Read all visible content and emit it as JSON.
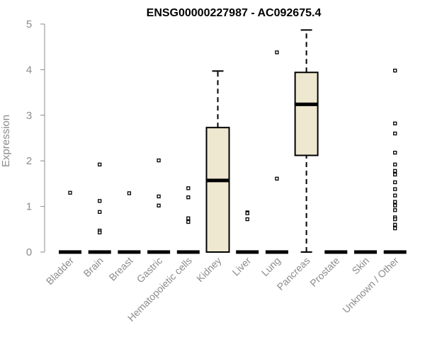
{
  "chart_data": {
    "type": "boxplot",
    "title": "ENSG00000227987 - AC092675.4",
    "ylabel": "Expression",
    "xlabel": "",
    "ylim": [
      0,
      5
    ],
    "yticks": [
      0,
      1,
      2,
      3,
      4,
      5
    ],
    "grid": false,
    "legend": "none",
    "box_fill": "#efe8d0",
    "categories": [
      "Bladder",
      "Brain",
      "Breast",
      "Gastric",
      "Hematopoietic cells",
      "Kidney",
      "Liver",
      "Lung",
      "Pancreas",
      "Prostate",
      "Skin",
      "Unknown / Other"
    ],
    "boxes": [
      {
        "q1": 0,
        "median": 0,
        "q3": 0,
        "whisker_low": 0,
        "whisker_high": 0,
        "outliers": [
          1.3
        ]
      },
      {
        "q1": 0,
        "median": 0,
        "q3": 0,
        "whisker_low": 0,
        "whisker_high": 0,
        "outliers": [
          1.92,
          1.12,
          0.88,
          0.47,
          0.43
        ]
      },
      {
        "q1": 0,
        "median": 0,
        "q3": 0,
        "whisker_low": 0,
        "whisker_high": 0,
        "outliers": [
          1.29
        ]
      },
      {
        "q1": 0,
        "median": 0,
        "q3": 0,
        "whisker_low": 0,
        "whisker_high": 0,
        "outliers": [
          2.01,
          1.22,
          1.02
        ]
      },
      {
        "q1": 0,
        "median": 0,
        "q3": 0,
        "whisker_low": 0,
        "whisker_high": 0,
        "outliers": [
          1.4,
          1.2,
          0.74,
          0.66
        ]
      },
      {
        "q1": 0,
        "median": 1.57,
        "q3": 2.73,
        "whisker_low": 0,
        "whisker_high": 3.97,
        "outliers": []
      },
      {
        "q1": 0,
        "median": 0,
        "q3": 0,
        "whisker_low": 0,
        "whisker_high": 0,
        "outliers": [
          0.87,
          0.85,
          0.72
        ]
      },
      {
        "q1": 0,
        "median": 0,
        "q3": 0,
        "whisker_low": 0,
        "whisker_high": 0,
        "outliers": [
          4.38,
          1.61
        ]
      },
      {
        "q1": 2.12,
        "median": 3.24,
        "q3": 3.94,
        "whisker_low": 0,
        "whisker_high": 4.87,
        "outliers": []
      },
      {
        "q1": 0,
        "median": 0,
        "q3": 0,
        "whisker_low": 0,
        "whisker_high": 0,
        "outliers": []
      },
      {
        "q1": 0,
        "median": 0,
        "q3": 0,
        "whisker_low": 0,
        "whisker_high": 0,
        "outliers": []
      },
      {
        "q1": 0,
        "median": 0,
        "q3": 0,
        "whisker_low": 0,
        "whisker_high": 0,
        "outliers": [
          3.98,
          2.82,
          2.6,
          2.18,
          1.92,
          1.78,
          1.7,
          1.53,
          1.38,
          1.24,
          1.1,
          1.02,
          0.92,
          0.76,
          0.72,
          0.6,
          0.52
        ]
      }
    ]
  }
}
